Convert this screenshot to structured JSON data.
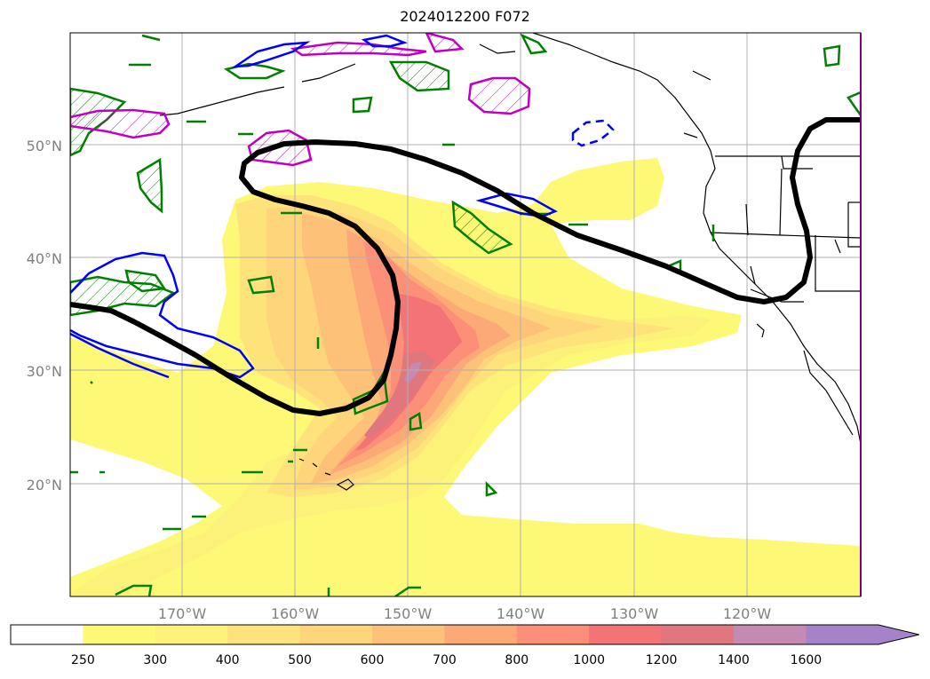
{
  "title": "2024012200 F072",
  "map": {
    "projection": "Plate Carree",
    "lon_range_deg": [
      -180,
      -110
    ],
    "lat_range_deg": [
      10,
      60
    ],
    "lat_ticks": [
      "50°N",
      "40°N",
      "30°N",
      "20°N"
    ],
    "lon_ticks": [
      "170°W",
      "160°W",
      "150°W",
      "140°W",
      "130°W",
      "120°W"
    ],
    "gridlines": true,
    "fill_colors": {
      "250": "#fdf977",
      "300": "#fdf279",
      "400": "#fee37b",
      "500": "#fed57a",
      "600": "#fdc278",
      "700": "#fda877",
      "800": "#fc8f77",
      "1000": "#f37376",
      "1200": "#e0777e",
      "1400": "#c58ab1",
      "1600": "#a683c8"
    },
    "contour_colors": {
      "black_line": "#000000",
      "green": "#008000",
      "blue": "#0000ff",
      "magenta": "#c000c0"
    }
  },
  "colorbar": {
    "levels": [
      "250",
      "300",
      "400",
      "500",
      "600",
      "700",
      "800",
      "1000",
      "1200",
      "1400",
      "1600"
    ],
    "colors": [
      "#ffffff",
      "#fdf977",
      "#fdf279",
      "#fee37b",
      "#fed57a",
      "#fdc278",
      "#fda877",
      "#fc8f77",
      "#f37376",
      "#e0777e",
      "#c58ab1",
      "#a683c8"
    ],
    "extend": "max"
  }
}
